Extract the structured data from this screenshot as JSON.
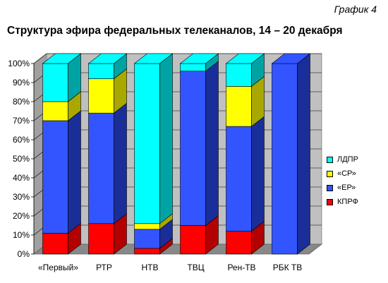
{
  "caption": "График 4",
  "chart_data": {
    "type": "bar",
    "stacked": true,
    "title": "Структура эфира федеральных телеканалов, 14 – 20 декабря",
    "categories": [
      "«Первый»",
      "РТР",
      "НТВ",
      "ТВЦ",
      "Рен-ТВ",
      "РБК ТВ"
    ],
    "ylim": [
      0,
      100
    ],
    "yticks": [
      "0%",
      "10%",
      "20%",
      "30%",
      "40%",
      "50%",
      "60%",
      "70%",
      "80%",
      "90%",
      "100%"
    ],
    "legend_position": "right",
    "series": [
      {
        "name": "КПРФ",
        "color": "#ff0000",
        "side": "#b30000",
        "values": [
          11,
          16,
          3,
          15,
          12,
          0
        ]
      },
      {
        "name": "«ЕР»",
        "color": "#3355ff",
        "side": "#1a2e99",
        "values": [
          59,
          58,
          10,
          81,
          55,
          100
        ]
      },
      {
        "name": "«СР»",
        "color": "#ffff00",
        "side": "#a8a800",
        "values": [
          10,
          18,
          3,
          0,
          21,
          0
        ]
      },
      {
        "name": "ЛДПР",
        "color": "#00ffff",
        "side": "#00a3a3",
        "values": [
          20,
          8,
          84,
          4,
          12,
          0
        ]
      }
    ]
  }
}
